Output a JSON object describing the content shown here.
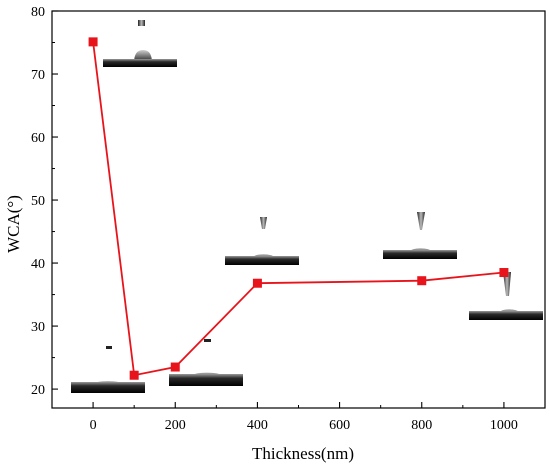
{
  "chart_data": {
    "type": "line",
    "title": "",
    "xlabel": "Thickness(nm)",
    "ylabel": "WCA(°)",
    "xlim": [
      -100,
      1100
    ],
    "ylim": [
      17,
      80
    ],
    "xticks": [
      0,
      200,
      400,
      600,
      800,
      1000
    ],
    "yticks": [
      20,
      30,
      40,
      50,
      60,
      70,
      80
    ],
    "grid": false,
    "legend": "none",
    "series": [
      {
        "color": "#e8141b",
        "marker": "square",
        "x": [
          0,
          100,
          200,
          400,
          800,
          1000
        ],
        "y": [
          75.1,
          22.2,
          23.5,
          36.8,
          37.2,
          38.5
        ]
      }
    ],
    "annotations": [
      {
        "type": "droplet-image",
        "near_x": 0,
        "near_y": 75.1
      },
      {
        "type": "droplet-image",
        "near_x": 100,
        "near_y": 22.2
      },
      {
        "type": "droplet-image",
        "near_x": 200,
        "near_y": 23.5
      },
      {
        "type": "droplet-image",
        "near_x": 400,
        "near_y": 36.8
      },
      {
        "type": "droplet-image",
        "near_x": 800,
        "near_y": 37.2
      },
      {
        "type": "droplet-image",
        "near_x": 1000,
        "near_y": 38.5
      }
    ]
  }
}
